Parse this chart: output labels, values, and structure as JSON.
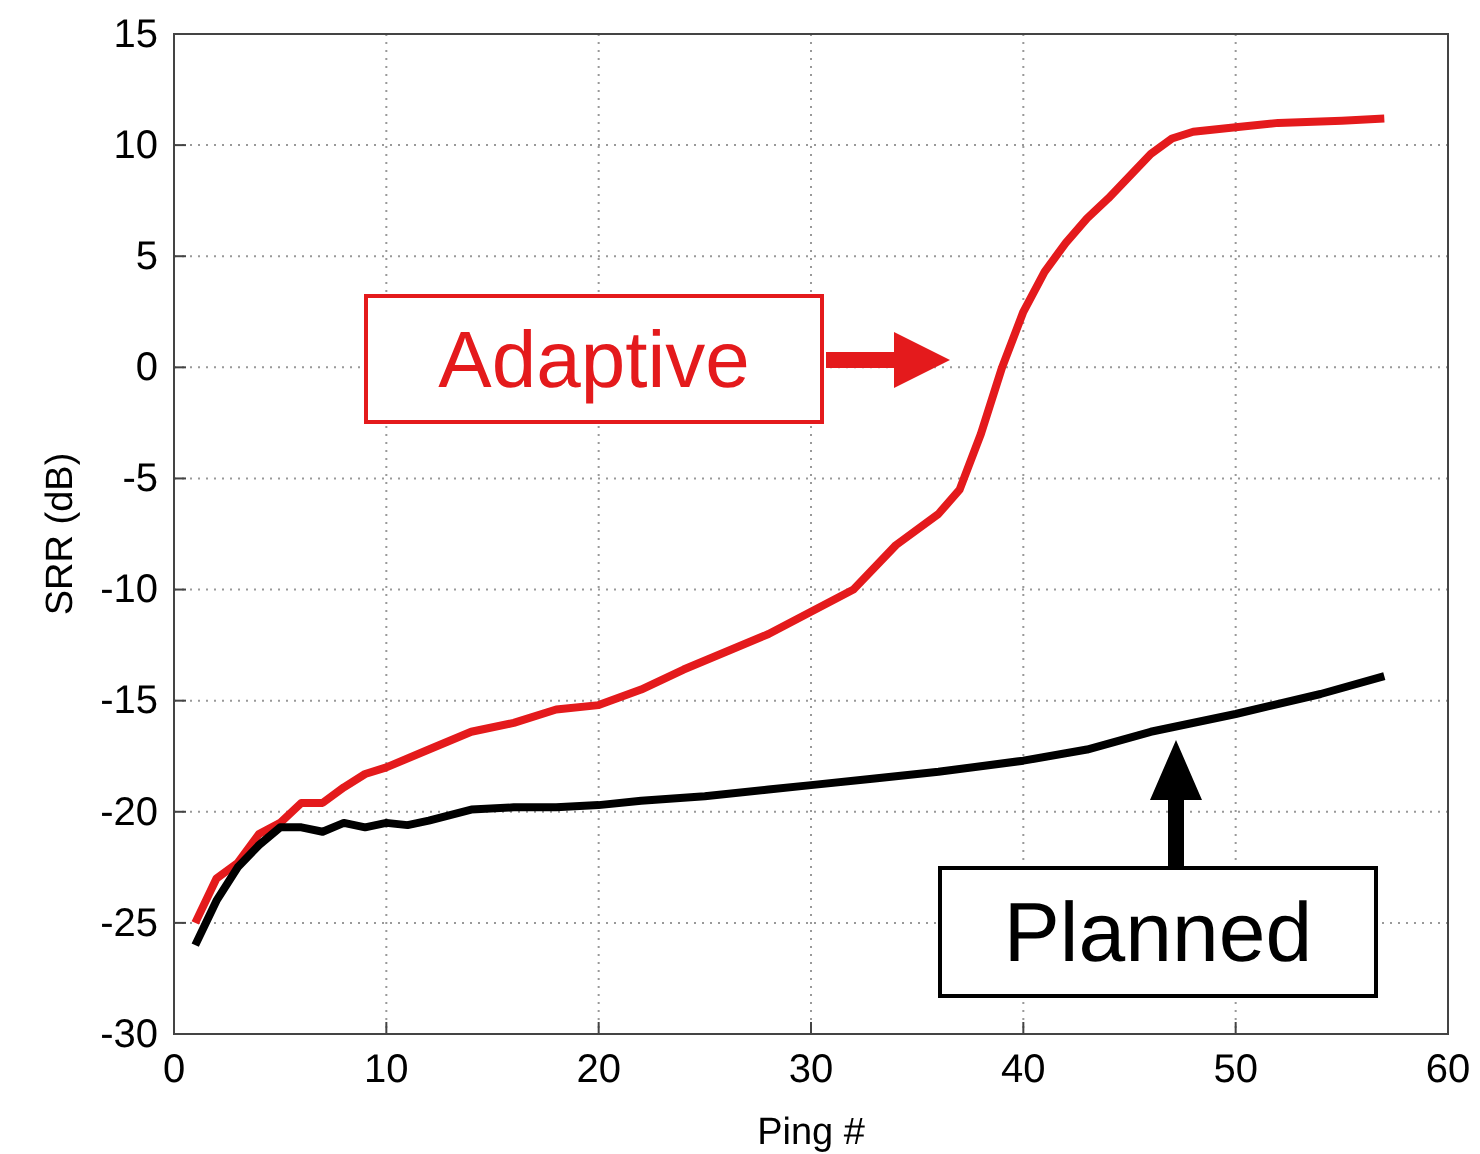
{
  "chart_data": {
    "type": "line",
    "xlabel": "Ping #",
    "ylabel": "SRR (dB)",
    "xlim": [
      0,
      60
    ],
    "ylim": [
      -30,
      15
    ],
    "xticks": [
      0,
      10,
      20,
      30,
      40,
      50,
      60
    ],
    "yticks": [
      -30,
      -25,
      -20,
      -15,
      -10,
      -5,
      0,
      5,
      10,
      15
    ],
    "grid": true,
    "legend": "left",
    "marker": "none",
    "line_style": "solid",
    "series": [
      {
        "name": "Adaptive",
        "color": "#e41a1c",
        "x": [
          1,
          2,
          3,
          4,
          5,
          6,
          7,
          8,
          9,
          10,
          12,
          14,
          16,
          18,
          20,
          22,
          24,
          26,
          28,
          30,
          32,
          34,
          36,
          37,
          38,
          39,
          40,
          41,
          42,
          43,
          44,
          45,
          46,
          47,
          48,
          50,
          52,
          55,
          57
        ],
        "values": [
          -25,
          -23,
          -22.3,
          -21,
          -20.5,
          -19.6,
          -19.6,
          -18.9,
          -18.3,
          -18,
          -17.2,
          -16.4,
          -16,
          -15.4,
          -15.2,
          -14.5,
          -13.6,
          -12.8,
          -12,
          -11,
          -10,
          -8,
          -6.6,
          -5.5,
          -3,
          0,
          2.5,
          4.3,
          5.6,
          6.7,
          7.6,
          8.6,
          9.6,
          10.3,
          10.6,
          10.8,
          11,
          11.1,
          11.2
        ]
      },
      {
        "name": "Planned",
        "color": "#000000",
        "x": [
          1,
          2,
          3,
          4,
          5,
          6,
          7,
          8,
          9,
          10,
          11,
          12,
          14,
          16,
          18,
          20,
          22,
          25,
          28,
          30,
          33,
          36,
          40,
          43,
          46,
          50,
          54,
          57
        ],
        "values": [
          -26,
          -24,
          -22.5,
          -21.5,
          -20.7,
          -20.7,
          -20.9,
          -20.5,
          -20.7,
          -20.5,
          -20.6,
          -20.4,
          -19.9,
          -19.8,
          -19.8,
          -19.7,
          -19.5,
          -19.3,
          -19,
          -18.8,
          -18.5,
          -18.2,
          -17.7,
          -17.2,
          -16.4,
          -15.6,
          -14.7,
          -13.9
        ]
      }
    ]
  }
}
